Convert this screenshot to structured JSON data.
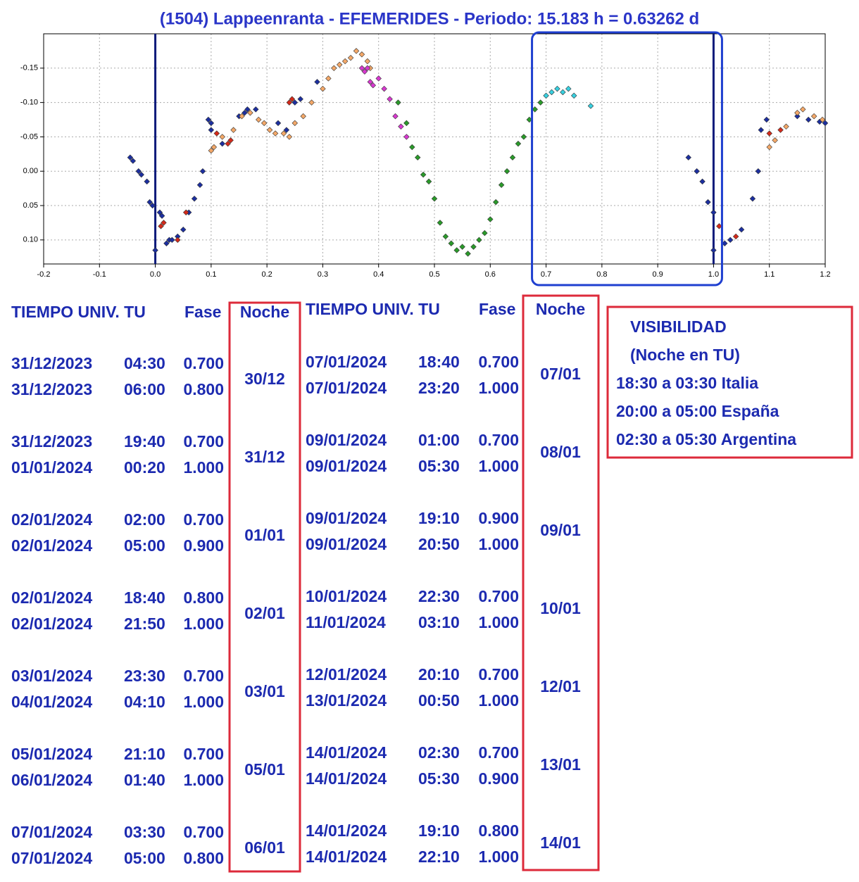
{
  "chart_data": {
    "type": "scatter",
    "title": "(1504) Lappeenranta - EFEMERIDES - Periodo: 15.183 h = 0.63262 d",
    "xlim": [
      -0.2,
      1.2
    ],
    "xticks": [
      -0.2,
      -0.1,
      {
        "value": 0,
        "label": "0.0"
      },
      0.1,
      0.2,
      0.3,
      0.4,
      0.5,
      0.6,
      0.7,
      0.8,
      0.9,
      {
        "value": 1,
        "label": "1.0"
      },
      1.1,
      1.2
    ],
    "ylim": [
      -0.2,
      0.135
    ],
    "yticks": [
      -0.15,
      {
        "value": -0.1,
        "label": "-0.10"
      },
      -0.05,
      {
        "value": 0,
        "label": "0.00"
      },
      0.05,
      {
        "value": 0.1,
        "label": "0.10"
      }
    ],
    "y_inverted": true,
    "grid": true,
    "vlines": [
      0,
      1
    ],
    "vline_color": "#0a1a7a",
    "highlight_range": [
      0.7,
      1.0
    ],
    "highlight_color": "#1f3fd0",
    "series": [
      {
        "color": "#1c2fa0",
        "x": [
          -0.045,
          -0.04,
          -0.03,
          -0.025,
          -0.015,
          -0.01,
          -0.005,
          0.0,
          0.008,
          0.012,
          0.02,
          0.025,
          0.03,
          0.04,
          0.05,
          0.06,
          0.07,
          0.08,
          0.085,
          0.1,
          0.095,
          0.1,
          0.12,
          0.15,
          0.16,
          0.165,
          0.18,
          0.22,
          0.235,
          0.25,
          0.26,
          0.29,
          0.955,
          0.97,
          0.98,
          0.99,
          1.0,
          1.0,
          1.02,
          1.03,
          1.05,
          1.07,
          1.08,
          1.085,
          1.095,
          1.15,
          1.17,
          1.19,
          1.2
        ],
        "values": [
          -0.02,
          -0.015,
          0.0,
          0.005,
          0.015,
          0.045,
          0.05,
          0.115,
          0.06,
          0.065,
          0.105,
          0.1,
          0.1,
          0.095,
          0.085,
          0.06,
          0.04,
          0.02,
          0.0,
          -0.06,
          -0.075,
          -0.07,
          -0.04,
          -0.08,
          -0.085,
          -0.09,
          -0.09,
          -0.07,
          -0.06,
          -0.1,
          -0.105,
          -0.13,
          -0.02,
          0.0,
          0.015,
          0.045,
          0.06,
          0.115,
          0.105,
          0.1,
          0.085,
          0.04,
          0.0,
          -0.06,
          -0.075,
          -0.08,
          -0.075,
          -0.072,
          -0.07
        ]
      },
      {
        "color": "#d42a1a",
        "x": [
          0.01,
          0.015,
          0.04,
          0.055,
          0.11,
          0.13,
          0.135,
          0.24,
          0.245,
          1.01,
          1.04,
          1.1,
          1.12
        ],
        "values": [
          0.08,
          0.075,
          0.1,
          0.06,
          -0.055,
          -0.04,
          -0.045,
          -0.1,
          -0.105,
          0.08,
          0.095,
          -0.055,
          -0.06
        ]
      },
      {
        "color": "#f4a868",
        "x": [
          0.1,
          0.105,
          0.12,
          0.14,
          0.155,
          0.17,
          0.185,
          0.195,
          0.205,
          0.215,
          0.23,
          0.24,
          0.25,
          0.265,
          0.28,
          0.3,
          0.31,
          0.32,
          0.33,
          0.34,
          0.35,
          0.36,
          0.37,
          0.38,
          0.385,
          1.1,
          1.11,
          1.13,
          1.15,
          1.16,
          1.18,
          1.195
        ],
        "values": [
          -0.03,
          -0.035,
          -0.05,
          -0.06,
          -0.08,
          -0.085,
          -0.075,
          -0.07,
          -0.06,
          -0.055,
          -0.055,
          -0.05,
          -0.07,
          -0.08,
          -0.1,
          -0.12,
          -0.135,
          -0.15,
          -0.155,
          -0.16,
          -0.165,
          -0.175,
          -0.17,
          -0.16,
          -0.15,
          -0.035,
          -0.045,
          -0.065,
          -0.085,
          -0.09,
          -0.08,
          -0.075
        ]
      },
      {
        "color": "#d838d0",
        "x": [
          0.37,
          0.375,
          0.38,
          0.385,
          0.39,
          0.4,
          0.41,
          0.42,
          0.43,
          0.44,
          0.45
        ],
        "values": [
          -0.15,
          -0.145,
          -0.15,
          -0.13,
          -0.125,
          -0.135,
          -0.12,
          -0.105,
          -0.08,
          -0.065,
          -0.05
        ]
      },
      {
        "color": "#2a9a2a",
        "x": [
          0.435,
          0.45,
          0.46,
          0.47,
          0.48,
          0.49,
          0.5,
          0.51,
          0.52,
          0.53,
          0.54,
          0.55,
          0.56,
          0.57,
          0.58,
          0.59,
          0.6,
          0.61,
          0.62,
          0.63,
          0.64,
          0.65,
          0.66,
          0.67,
          0.68,
          0.69
        ],
        "values": [
          -0.1,
          -0.07,
          -0.035,
          -0.02,
          0.005,
          0.015,
          0.04,
          0.075,
          0.095,
          0.105,
          0.115,
          0.11,
          0.12,
          0.11,
          0.1,
          0.09,
          0.07,
          0.045,
          0.02,
          0.0,
          -0.02,
          -0.04,
          -0.05,
          -0.075,
          -0.09,
          -0.1
        ]
      },
      {
        "color": "#38d0e0",
        "x": [
          0.7,
          0.71,
          0.72,
          0.73,
          0.74,
          0.75,
          0.78
        ],
        "values": [
          -0.11,
          -0.115,
          -0.12,
          -0.115,
          -0.12,
          -0.11,
          -0.095
        ]
      }
    ]
  },
  "tables": [
    {
      "header": [
        "TIEMPO UNIV. TU",
        "Fase",
        "Noche"
      ],
      "groups": [
        {
          "rows": [
            [
              "31/12/2023",
              "04:30",
              "0.700"
            ],
            [
              "31/12/2023",
              "06:00",
              "0.800"
            ]
          ],
          "noche": "30/12"
        },
        {
          "rows": [
            [
              "31/12/2023",
              "19:40",
              "0.700"
            ],
            [
              "01/01/2024",
              "00:20",
              "1.000"
            ]
          ],
          "noche": "31/12"
        },
        {
          "rows": [
            [
              "02/01/2024",
              "02:00",
              "0.700"
            ],
            [
              "02/01/2024",
              "05:00",
              "0.900"
            ]
          ],
          "noche": "01/01"
        },
        {
          "rows": [
            [
              "02/01/2024",
              "18:40",
              "0.800"
            ],
            [
              "02/01/2024",
              "21:50",
              "1.000"
            ]
          ],
          "noche": "02/01"
        },
        {
          "rows": [
            [
              "03/01/2024",
              "23:30",
              "0.700"
            ],
            [
              "04/01/2024",
              "04:10",
              "1.000"
            ]
          ],
          "noche": "03/01"
        },
        {
          "rows": [
            [
              "05/01/2024",
              "21:10",
              "0.700"
            ],
            [
              "06/01/2024",
              "01:40",
              "1.000"
            ]
          ],
          "noche": "05/01"
        },
        {
          "rows": [
            [
              "07/01/2024",
              "03:30",
              "0.700"
            ],
            [
              "07/01/2024",
              "05:00",
              "0.800"
            ]
          ],
          "noche": "06/01"
        }
      ]
    },
    {
      "header": [
        "TIEMPO UNIV. TU",
        "Fase",
        "Noche"
      ],
      "groups": [
        {
          "rows": [
            [
              "07/01/2024",
              "18:40",
              "0.700"
            ],
            [
              "07/01/2024",
              "23:20",
              "1.000"
            ]
          ],
          "noche": "07/01"
        },
        {
          "rows": [
            [
              "09/01/2024",
              "01:00",
              "0.700"
            ],
            [
              "09/01/2024",
              "05:30",
              "1.000"
            ]
          ],
          "noche": "08/01"
        },
        {
          "rows": [
            [
              "09/01/2024",
              "19:10",
              "0.900"
            ],
            [
              "09/01/2024",
              "20:50",
              "1.000"
            ]
          ],
          "noche": "09/01"
        },
        {
          "rows": [
            [
              "10/01/2024",
              "22:30",
              "0.700"
            ],
            [
              "11/01/2024",
              "03:10",
              "1.000"
            ]
          ],
          "noche": "10/01"
        },
        {
          "rows": [
            [
              "12/01/2024",
              "20:10",
              "0.700"
            ],
            [
              "13/01/2024",
              "00:50",
              "1.000"
            ]
          ],
          "noche": "12/01"
        },
        {
          "rows": [
            [
              "14/01/2024",
              "02:30",
              "0.700"
            ],
            [
              "14/01/2024",
              "05:30",
              "0.900"
            ]
          ],
          "noche": "13/01"
        },
        {
          "rows": [
            [
              "14/01/2024",
              "19:10",
              "0.800"
            ],
            [
              "14/01/2024",
              "22:10",
              "1.000"
            ]
          ],
          "noche": "14/01"
        }
      ]
    }
  ],
  "visibility": {
    "title": "VISIBILIDAD",
    "subtitle": "(Noche en TU)",
    "lines": [
      "18:30 a 03:30 Italia",
      "20:00 a 05:00 España",
      "02:30 a 05:30 Argentina"
    ]
  }
}
